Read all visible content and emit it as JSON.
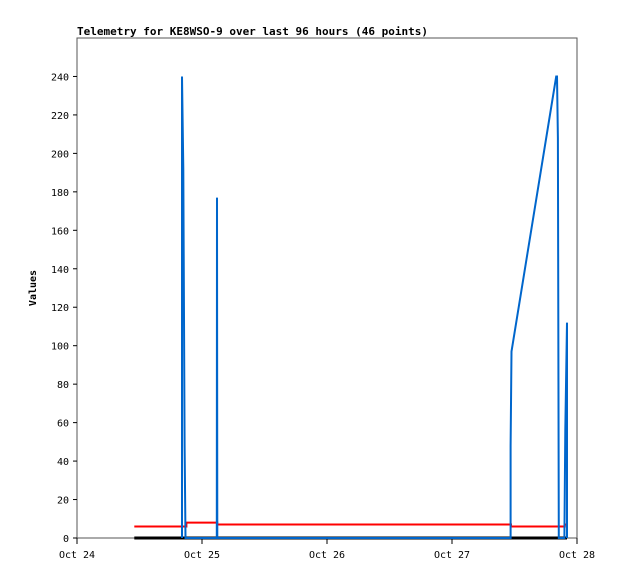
{
  "chart_data": {
    "type": "line",
    "title": "Telemetry for KE8WSO-9 over last 96 hours (46 points)",
    "xlabel": "",
    "ylabel": "Values",
    "xlim": [
      "Oct 24 00:00",
      "Oct 28 00:00"
    ],
    "ylim": [
      0,
      260
    ],
    "x_ticks": [
      "Oct 24",
      "Oct 25",
      "Oct 26",
      "Oct 27",
      "Oct 28"
    ],
    "y_ticks": [
      0,
      20,
      40,
      60,
      80,
      100,
      120,
      140,
      160,
      180,
      200,
      220,
      240
    ],
    "grid": false,
    "series": [
      {
        "color": "#000000",
        "points": [
          [
            "Oct 24 11:00",
            0
          ],
          [
            "Oct 27 22:05",
            0
          ]
        ]
      },
      {
        "color": "#ff0000",
        "points": [
          [
            "Oct 24 11:00",
            6
          ],
          [
            "Oct 24 21:00",
            6
          ],
          [
            "Oct 24 21:00",
            8
          ],
          [
            "Oct 25 02:55",
            8
          ],
          [
            "Oct 25 02:55",
            7
          ],
          [
            "Oct 27 11:20",
            7
          ],
          [
            "Oct 27 11:20",
            6
          ],
          [
            "Oct 27 21:40",
            6
          ],
          [
            "Oct 27 21:40",
            7
          ],
          [
            "Oct 27 22:05",
            7
          ]
        ]
      },
      {
        "color": "#0066cc",
        "points": [
          [
            "Oct 24 20:10",
            0
          ],
          [
            "Oct 24 20:10",
            240
          ],
          [
            "Oct 24 20:25",
            192
          ],
          [
            "Oct 24 20:40",
            48
          ],
          [
            "Oct 24 20:50",
            0
          ],
          [
            "Oct 25 02:50",
            0
          ],
          [
            "Oct 25 02:53",
            177
          ],
          [
            "Oct 25 02:56",
            0
          ],
          [
            "Oct 27 11:15",
            0
          ],
          [
            "Oct 27 11:15",
            48
          ],
          [
            "Oct 27 11:25",
            97
          ],
          [
            "Oct 27 20:00",
            240
          ],
          [
            "Oct 27 20:10",
            240
          ],
          [
            "Oct 27 20:20",
            208
          ],
          [
            "Oct 27 20:30",
            0
          ],
          [
            "Oct 27 21:35",
            0
          ],
          [
            "Oct 27 21:45",
            56
          ],
          [
            "Oct 27 22:05",
            112
          ],
          [
            "Oct 27 22:05",
            0
          ]
        ]
      }
    ]
  }
}
